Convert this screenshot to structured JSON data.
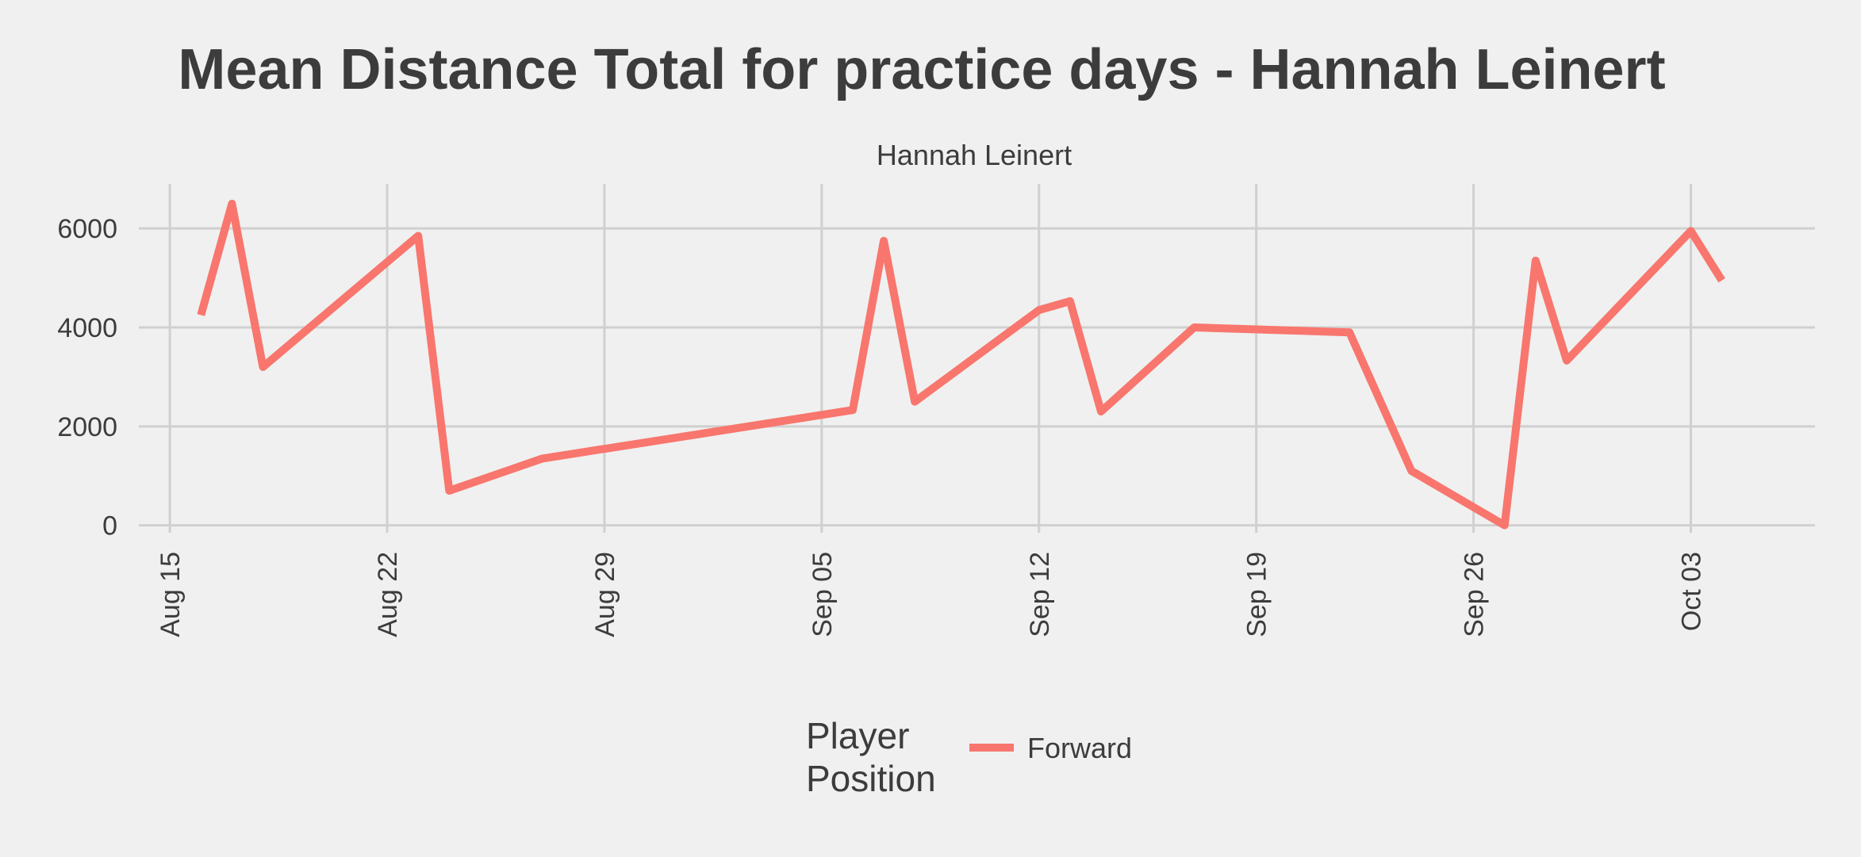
{
  "chart_data": {
    "type": "line",
    "title": "Mean Distance Total for practice days -  Hannah Leinert",
    "facet_label": "Hannah Leinert",
    "xlabel": "",
    "ylabel": "",
    "x_tick_labels": [
      "Aug 15",
      "Aug 22",
      "Aug 29",
      "Sep 05",
      "Sep 12",
      "Sep 19",
      "Sep 26",
      "Oct 03"
    ],
    "y_tick_labels": [
      "0",
      "2000",
      "4000",
      "6000"
    ],
    "y_ticks": [
      0,
      2000,
      4000,
      6000
    ],
    "ylim": [
      -150,
      6900
    ],
    "xlim": [
      "2022-08-14",
      "2022-10-07"
    ],
    "grid": true,
    "legend": {
      "title_lines": [
        "Player",
        "Position"
      ],
      "placement": "bottom"
    },
    "series": [
      {
        "name": "Forward",
        "color": "#f8766d",
        "points": [
          {
            "x": "2022-08-16",
            "y": 4250
          },
          {
            "x": "2022-08-17",
            "y": 6500
          },
          {
            "x": "2022-08-18",
            "y": 3200
          },
          {
            "x": "2022-08-23",
            "y": 5850
          },
          {
            "x": "2022-08-24",
            "y": 700
          },
          {
            "x": "2022-08-27",
            "y": 1350
          },
          {
            "x": "2022-09-06",
            "y": 2330
          },
          {
            "x": "2022-09-07",
            "y": 5750
          },
          {
            "x": "2022-09-08",
            "y": 2500
          },
          {
            "x": "2022-09-12",
            "y": 4350
          },
          {
            "x": "2022-09-13",
            "y": 4530
          },
          {
            "x": "2022-09-14",
            "y": 2300
          },
          {
            "x": "2022-09-17",
            "y": 4000
          },
          {
            "x": "2022-09-22",
            "y": 3900
          },
          {
            "x": "2022-09-24",
            "y": 1100
          },
          {
            "x": "2022-09-27",
            "y": 0
          },
          {
            "x": "2022-09-28",
            "y": 5350
          },
          {
            "x": "2022-09-29",
            "y": 3330
          },
          {
            "x": "2022-10-03",
            "y": 5950
          },
          {
            "x": "2022-10-04",
            "y": 4950
          }
        ]
      }
    ]
  }
}
